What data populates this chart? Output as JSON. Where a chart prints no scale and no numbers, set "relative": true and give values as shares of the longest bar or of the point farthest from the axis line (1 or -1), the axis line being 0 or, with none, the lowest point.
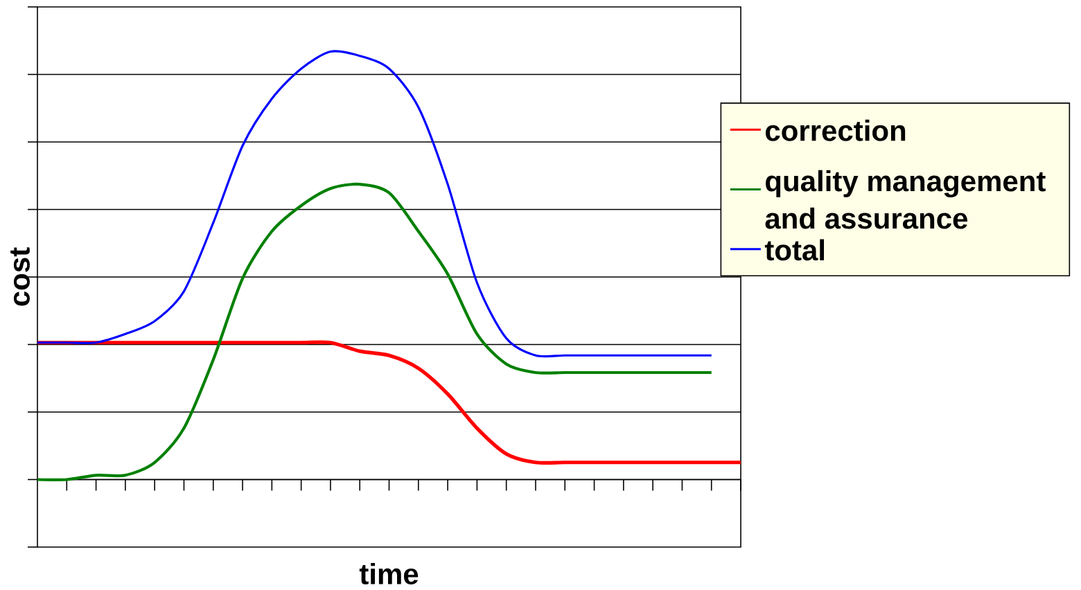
{
  "chart_data": {
    "type": "line",
    "relative": true,
    "xlabel": "time",
    "ylabel": "cost",
    "grid": "y",
    "legend": "right",
    "categories": [
      null,
      null,
      null,
      null,
      null,
      null,
      null,
      null,
      null,
      null,
      null,
      null,
      null,
      null,
      null,
      null,
      null,
      null,
      null,
      null,
      null,
      null,
      null,
      null,
      null
    ],
    "series": [
      {
        "name": "correction",
        "color": "#ff0000",
        "values": [
          0.32,
          0.32,
          0.32,
          0.32,
          0.32,
          0.32,
          0.32,
          0.32,
          0.32,
          0.32,
          0.32,
          0.3,
          0.29,
          0.26,
          0.2,
          0.12,
          0.06,
          0.04,
          0.04,
          0.04,
          0.04,
          0.04,
          0.04,
          0.04,
          0.04
        ]
      },
      {
        "name": "quality management and assurance",
        "color": "#008000",
        "values": [
          0.0,
          0.0,
          0.01,
          0.01,
          0.04,
          0.12,
          0.28,
          0.47,
          0.58,
          0.64,
          0.68,
          0.69,
          0.67,
          0.58,
          0.48,
          0.34,
          0.27,
          0.25,
          0.25,
          0.25,
          0.25,
          0.25,
          0.25,
          0.25,
          null
        ]
      },
      {
        "name": "total",
        "color": "#0000ff",
        "values": [
          0.32,
          0.32,
          0.32,
          0.34,
          0.37,
          0.44,
          0.6,
          0.78,
          0.89,
          0.96,
          1.0,
          0.99,
          0.96,
          0.87,
          0.69,
          0.46,
          0.33,
          0.29,
          0.29,
          0.29,
          0.29,
          0.29,
          0.29,
          0.29,
          null
        ]
      }
    ]
  }
}
